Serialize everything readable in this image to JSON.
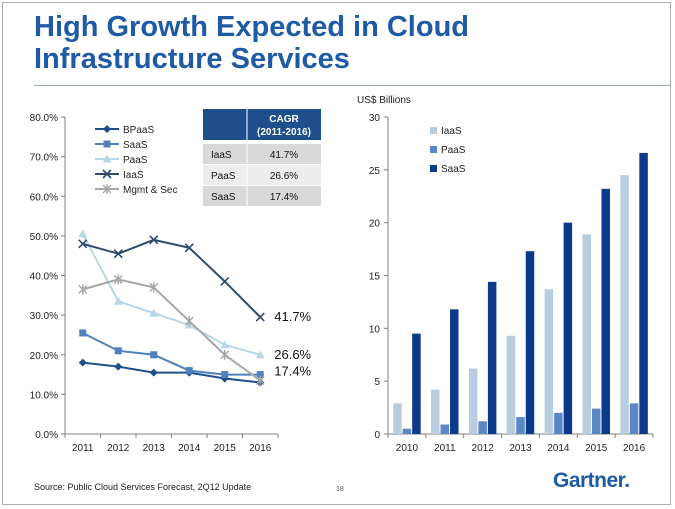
{
  "slide": {
    "title_line1": "High Growth Expected in Cloud",
    "title_line2": "Infrastructure Services",
    "source": "Source: Public Cloud Services Forecast, 2Q12 Update",
    "page_number": "18",
    "logo_text": "Gartner",
    "logo_dot": "."
  },
  "cagr_table": {
    "header_line1": "CAGR",
    "header_line2": "(2011-2016)",
    "rows": [
      {
        "label": "IaaS",
        "value": "41.7%"
      },
      {
        "label": "PaaS",
        "value": "26.6%"
      },
      {
        "label": "SaaS",
        "value": "17.4%"
      }
    ],
    "header_color": "#1f4e8c"
  },
  "chart_data": [
    {
      "type": "line",
      "x": [
        "2011",
        "2012",
        "2013",
        "2014",
        "2015",
        "2016"
      ],
      "ylim": [
        0,
        80
      ],
      "yticks": [
        "0.0%",
        "10.0%",
        "20.0%",
        "30.0%",
        "40.0%",
        "50.0%",
        "60.0%",
        "70.0%",
        "80.0%"
      ],
      "grid": false,
      "legend_position": "top-left",
      "series": [
        {
          "name": "BPaaS",
          "values": [
            18.0,
            17.0,
            15.5,
            15.5,
            14.0,
            13.0
          ],
          "color": "#1f4e8c",
          "marker": "diamond"
        },
        {
          "name": "SaaS",
          "values": [
            25.5,
            21.0,
            20.0,
            16.0,
            15.0,
            15.0
          ],
          "color": "#4f81bd",
          "marker": "square"
        },
        {
          "name": "PaaS",
          "values": [
            50.5,
            33.5,
            30.5,
            27.5,
            22.5,
            20.0
          ],
          "color": "#b7d7e8",
          "marker": "triangle"
        },
        {
          "name": "IaaS",
          "values": [
            48.0,
            45.5,
            49.0,
            47.0,
            38.5,
            29.5
          ],
          "color": "#2f4b6e",
          "marker": "x"
        },
        {
          "name": "Mgmt & Sec",
          "values": [
            36.5,
            39.0,
            37.0,
            28.5,
            20.0,
            13.5
          ],
          "color": "#a6a6a6",
          "marker": "star"
        }
      ],
      "annotations": [
        {
          "text": "41.7%",
          "series": "IaaS"
        },
        {
          "text": "26.6%",
          "series": "PaaS"
        },
        {
          "text": "17.4%",
          "series": "SaaS"
        }
      ]
    },
    {
      "type": "bar",
      "ylabel": "US$ Billions",
      "categories": [
        "2010",
        "2011",
        "2012",
        "2013",
        "2014",
        "2015",
        "2016"
      ],
      "ylim": [
        0,
        30
      ],
      "yticks": [
        "0",
        "5",
        "10",
        "15",
        "20",
        "25",
        "30"
      ],
      "grid": false,
      "legend_position": "top-left",
      "series": [
        {
          "name": "IaaS",
          "values": [
            2.9,
            4.2,
            6.2,
            9.3,
            13.7,
            18.9,
            24.5
          ],
          "color": "#b9cde0"
        },
        {
          "name": "PaaS",
          "values": [
            0.5,
            0.9,
            1.2,
            1.6,
            2.0,
            2.4,
            2.9
          ],
          "color": "#5b87c7"
        },
        {
          "name": "SaaS",
          "values": [
            9.5,
            11.8,
            14.4,
            17.3,
            20.0,
            23.2,
            26.6
          ],
          "color": "#0b3a8c"
        }
      ]
    }
  ]
}
